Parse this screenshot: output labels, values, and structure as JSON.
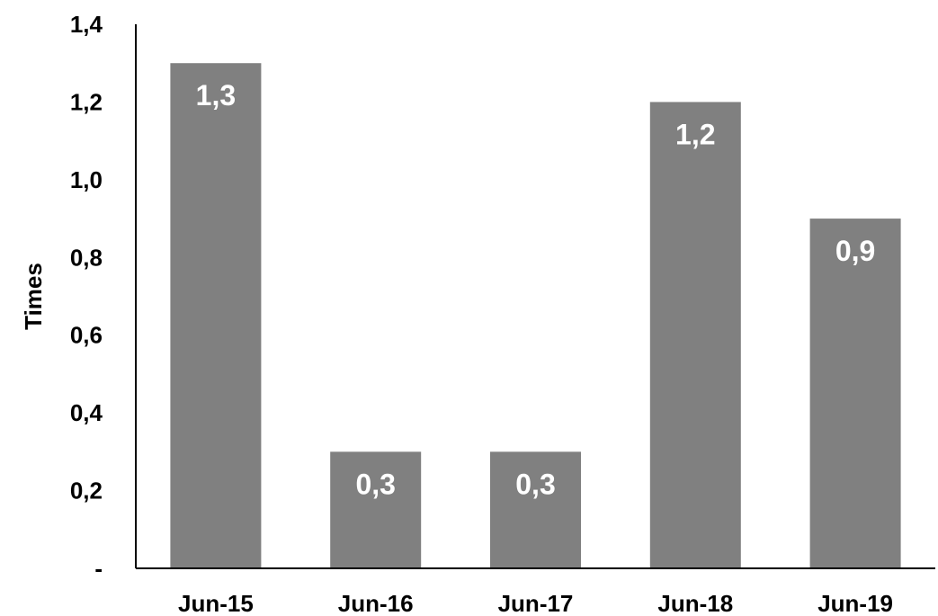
{
  "chart_data": {
    "type": "bar",
    "categories": [
      "Jun-15",
      "Jun-16",
      "Jun-17",
      "Jun-18",
      "Jun-19"
    ],
    "values": [
      1.3,
      0.3,
      0.3,
      1.2,
      0.9
    ],
    "data_labels": [
      "1,3",
      "0,3",
      "0,3",
      "1,2",
      "0,9"
    ],
    "title": "",
    "xlabel": "",
    "ylabel": "Times",
    "ylim": [
      0,
      1.4
    ],
    "yticks": [
      {
        "value": 0,
        "label": "-"
      },
      {
        "value": 0.2,
        "label": "0,2"
      },
      {
        "value": 0.4,
        "label": "0,4"
      },
      {
        "value": 0.6,
        "label": "0,6"
      },
      {
        "value": 0.8,
        "label": "0,8"
      },
      {
        "value": 1.0,
        "label": "1,0"
      },
      {
        "value": 1.2,
        "label": "1,2"
      },
      {
        "value": 1.4,
        "label": "1,4"
      }
    ],
    "grid": false,
    "legend": "none",
    "colors": {
      "bar": "#808080",
      "data_label": "#ffffff",
      "axis": "#000000"
    }
  }
}
